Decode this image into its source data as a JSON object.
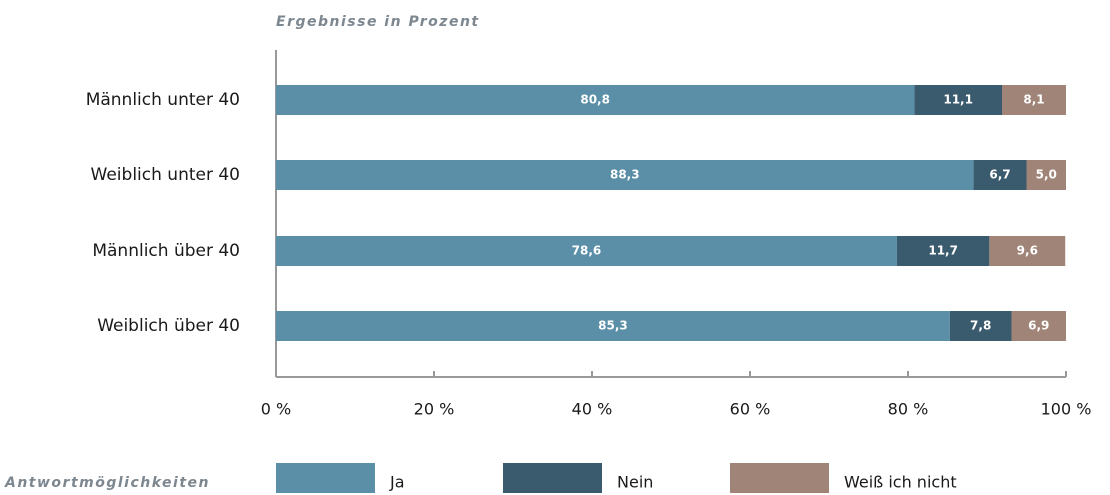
{
  "chart_data": {
    "type": "stacked_barh",
    "title": "Ergebnisse in Prozent",
    "legend_title": "Antwortmöglichkeiten",
    "categories": [
      "Männlich unter 40",
      "Weiblich unter 40",
      "Männlich über 40",
      "Weiblich über 40"
    ],
    "series": [
      {
        "name": "Ja",
        "color": "#5b8fa8",
        "values": [
          80.8,
          88.3,
          78.6,
          85.3
        ],
        "value_labels": [
          "80,8",
          "88,3",
          "78,6",
          "85,3"
        ]
      },
      {
        "name": "Nein",
        "color": "#3a5a6e",
        "values": [
          11.1,
          6.7,
          11.7,
          7.8
        ],
        "value_labels": [
          "11,1",
          "6,7",
          "11,7",
          "7,8"
        ]
      },
      {
        "name": "Weiß ich nicht",
        "color": "#a08478",
        "values": [
          8.1,
          5.0,
          9.6,
          6.9
        ],
        "value_labels": [
          "8,1",
          "5,0",
          "9,6",
          "6,9"
        ]
      }
    ],
    "xlim": [
      0,
      100
    ],
    "xticks": [
      {
        "value": 0,
        "label": "0 %"
      },
      {
        "value": 20,
        "label": "20 %"
      },
      {
        "value": 40,
        "label": "40 %"
      },
      {
        "value": 60,
        "label": "60 %"
      },
      {
        "value": 80,
        "label": "80 %"
      },
      {
        "value": 100,
        "label": "100 %"
      }
    ],
    "legend": "bottom"
  }
}
